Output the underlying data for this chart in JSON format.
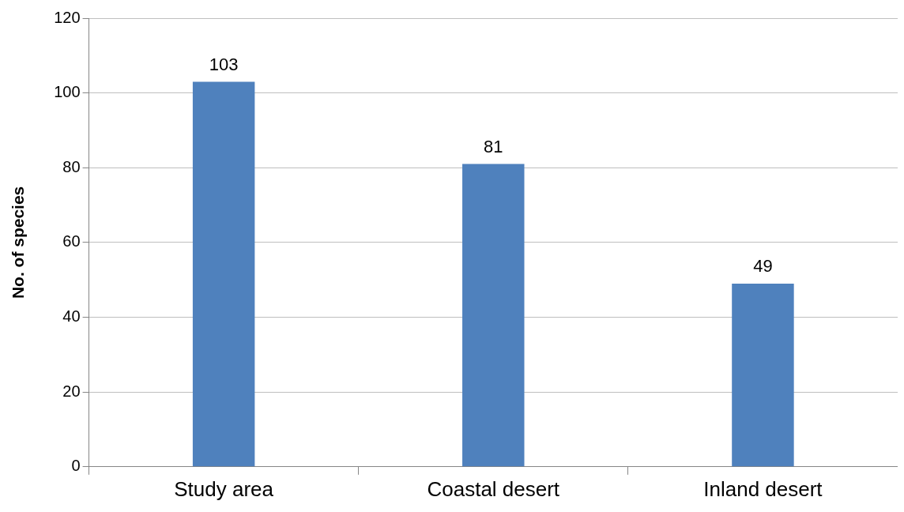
{
  "chart_data": {
    "type": "bar",
    "ylabel": "No. of species",
    "categories": [
      "Study area",
      "Coastal desert",
      "Inland desert"
    ],
    "values": [
      103,
      81,
      49
    ],
    "color": "#4f81bd",
    "ylim": [
      0,
      120
    ],
    "yticks": [
      0,
      20,
      40,
      60,
      80,
      100,
      120
    ],
    "grid": "y",
    "legend": false,
    "data_labels": true
  }
}
